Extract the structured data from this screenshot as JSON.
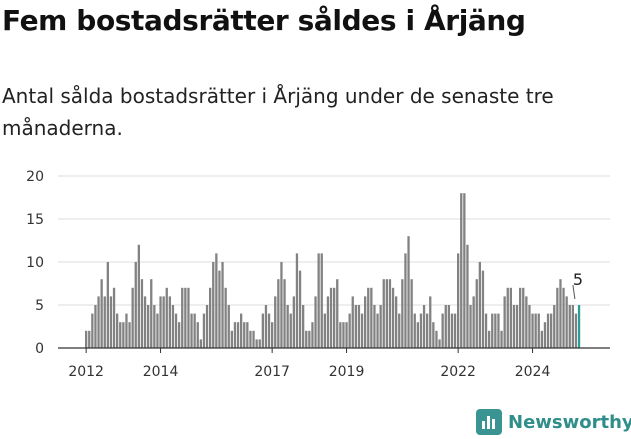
{
  "header": {
    "title": "Fem bostadsrätter såldes i Årjäng",
    "subtitle": "Antal sålda bostadsrätter i Årjäng under de senaste tre månaderna."
  },
  "brand": {
    "name": "Newsworthy",
    "icon": "newsworthy-logo-icon",
    "color": "#3a9592"
  },
  "chart_data": {
    "type": "bar",
    "title": "",
    "xlabel": "",
    "ylabel": "",
    "ylim": [
      0,
      20
    ],
    "yticks": [
      "0",
      "5",
      "10",
      "15",
      "20"
    ],
    "xticks": [
      {
        "label": "2012",
        "index": 0
      },
      {
        "label": "2014",
        "index": 24
      },
      {
        "label": "2017",
        "index": 60
      },
      {
        "label": "2019",
        "index": 84
      },
      {
        "label": "2022",
        "index": 120
      },
      {
        "label": "2024",
        "index": 144
      }
    ],
    "grid": true,
    "bar_color": "#828282",
    "highlight_color": "#2a9d99",
    "annotation": {
      "label": "5",
      "index": 159
    },
    "values": [
      2,
      2,
      4,
      5,
      6,
      8,
      6,
      10,
      6,
      7,
      4,
      3,
      3,
      4,
      3,
      7,
      10,
      12,
      8,
      6,
      5,
      8,
      5,
      4,
      6,
      6,
      7,
      6,
      5,
      4,
      3,
      7,
      7,
      7,
      4,
      4,
      3,
      1,
      4,
      5,
      7,
      10,
      11,
      9,
      10,
      7,
      5,
      2,
      3,
      3,
      4,
      3,
      3,
      2,
      2,
      1,
      1,
      4,
      5,
      4,
      3,
      6,
      8,
      10,
      8,
      5,
      4,
      6,
      11,
      9,
      5,
      2,
      2,
      3,
      6,
      11,
      11,
      4,
      6,
      7,
      7,
      8,
      3,
      3,
      3,
      4,
      6,
      5,
      5,
      4,
      6,
      7,
      7,
      5,
      4,
      5,
      8,
      8,
      8,
      7,
      6,
      4,
      8,
      11,
      13,
      8,
      4,
      3,
      4,
      5,
      4,
      6,
      3,
      2,
      1,
      4,
      5,
      5,
      4,
      4,
      11,
      18,
      18,
      12,
      5,
      6,
      8,
      10,
      9,
      4,
      2,
      4,
      4,
      4,
      2,
      6,
      7,
      7,
      5,
      5,
      7,
      7,
      6,
      5,
      4,
      4,
      4,
      2,
      3,
      4,
      4,
      5,
      7,
      8,
      7,
      6,
      5,
      5,
      4,
      5
    ]
  }
}
